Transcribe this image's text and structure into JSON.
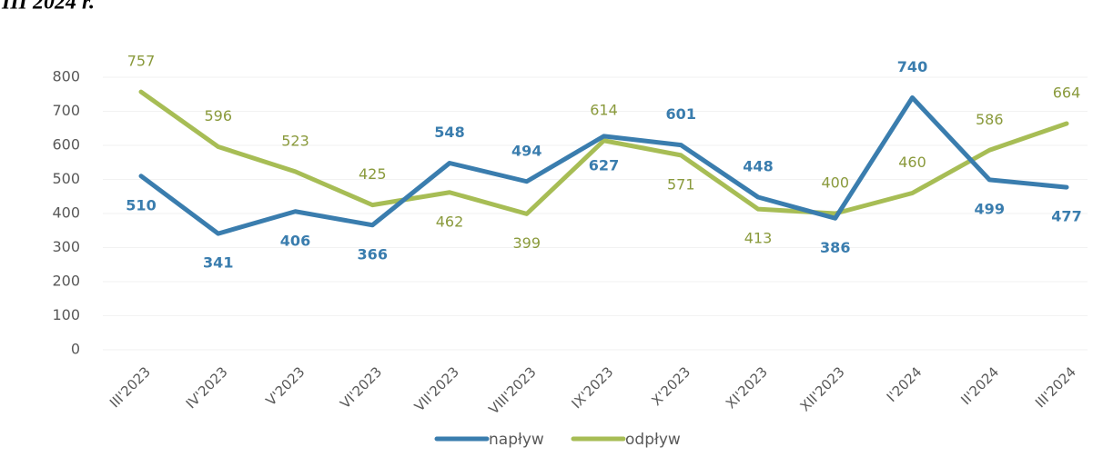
{
  "chart_data": {
    "type": "line",
    "title": "III 2024 r.",
    "categories": [
      "III'2023",
      "IV'2023",
      "V'2023",
      "VI'2023",
      "VII'2023",
      "VIII'2023",
      "IX'2023",
      "X'2023",
      "XI'2023",
      "XII'2023",
      "I'2024",
      "II'2024",
      "III'2024"
    ],
    "series": [
      {
        "name": "napływ",
        "color": "#3a7dae",
        "values": [
          510,
          341,
          406,
          366,
          548,
          494,
          627,
          601,
          448,
          386,
          740,
          499,
          477
        ]
      },
      {
        "name": "odpływ",
        "color": "#a7bd55",
        "values": [
          757,
          596,
          523,
          425,
          462,
          399,
          614,
          571,
          413,
          400,
          460,
          586,
          664
        ]
      }
    ],
    "ylim": [
      0,
      800
    ],
    "yticks": [
      0,
      100,
      200,
      300,
      400,
      500,
      600,
      700,
      800
    ],
    "grid": true,
    "legend": "bottom"
  }
}
